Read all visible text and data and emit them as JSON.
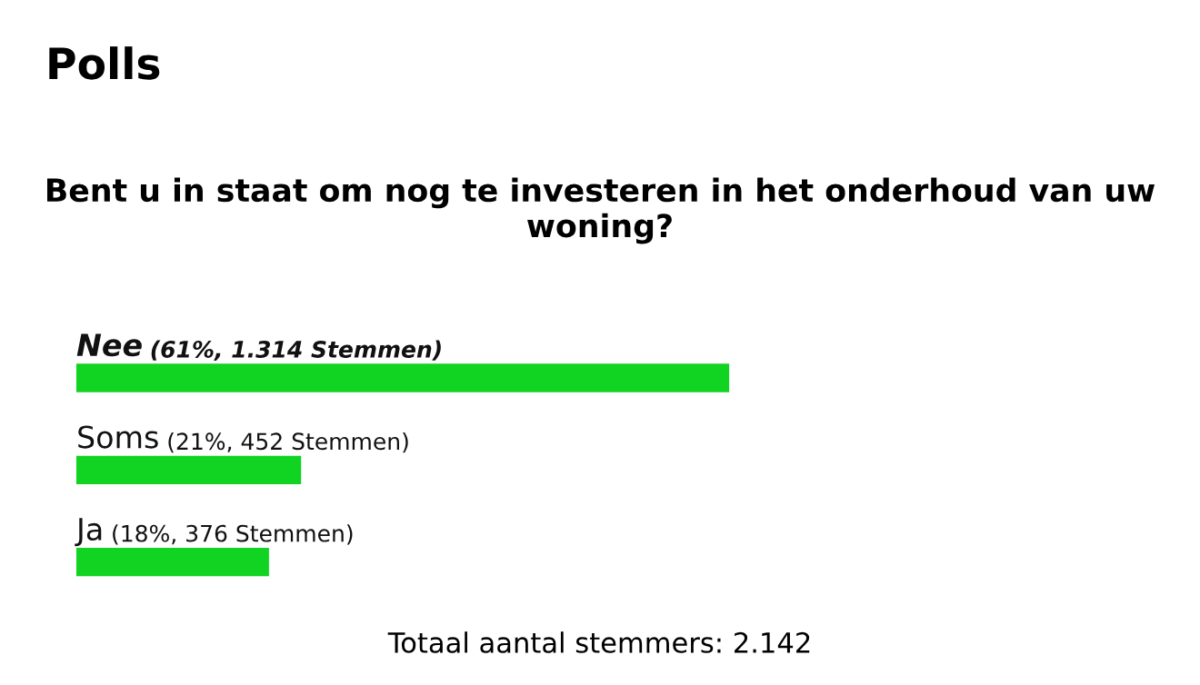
{
  "chart_data": {
    "type": "bar",
    "orientation": "horizontal",
    "title": "Polls",
    "subtitle": "Bent u in staat om nog te investeren in het onderhoud van uw woning?",
    "categories": [
      "Nee",
      "Soms",
      "Ja"
    ],
    "values": [
      61,
      21,
      18
    ],
    "value_labels": [
      "(61%, 1.314 Stemmen)",
      "(21%, 452 Stemmen)",
      "(18%, 376 Stemmen)"
    ],
    "color": "#11d422",
    "legend": false,
    "annotations": [
      "Totaal aantal stemmers: 2.142"
    ]
  }
}
